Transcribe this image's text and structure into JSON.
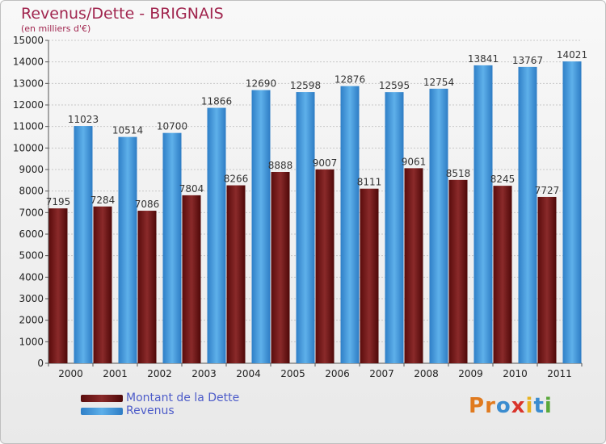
{
  "title": "Revenus/Dette - BRIGNAIS",
  "subtitle": "(en milliers d'€)",
  "logo": {
    "letters": [
      "P",
      "r",
      "o",
      "x",
      "i",
      "t",
      "i"
    ]
  },
  "colors": {
    "debt": "#6b1010",
    "revenue": "#3d93d6",
    "title": "#a1264f",
    "legend_text": "#4d5cc9"
  },
  "legend": {
    "debt_label": "Montant de la Dette",
    "revenue_label": "Revenus"
  },
  "chart_data": {
    "type": "bar",
    "categories": [
      "2000",
      "2001",
      "2002",
      "2003",
      "2004",
      "2005",
      "2006",
      "2007",
      "2008",
      "2009",
      "2010",
      "2011"
    ],
    "series": [
      {
        "name": "Montant de la Dette",
        "values": [
          7195,
          7284,
          7086,
          7804,
          8266,
          8888,
          9007,
          8111,
          9061,
          8518,
          8245,
          7727
        ],
        "labels": [
          "7195",
          "7284",
          "7086",
          "7804",
          "8266",
          "8888",
          "9007",
          "8111",
          "9061",
          "8518",
          "8245",
          "7727"
        ]
      },
      {
        "name": "Revenus",
        "values": [
          11023,
          10514,
          10700,
          11866,
          12690,
          12598,
          12876,
          12595,
          12754,
          13841,
          13767,
          14021
        ],
        "labels": [
          "11023",
          "10514",
          "10700",
          "11866",
          "12690",
          "12598",
          "12876",
          "12595",
          "12754",
          "13841",
          "13767",
          "14021"
        ]
      }
    ],
    "ylim": [
      0,
      15000
    ],
    "yticks": [
      "0",
      "1000",
      "2000",
      "3000",
      "4000",
      "5000",
      "6000",
      "7000",
      "8000",
      "9000",
      "10000",
      "11000",
      "12000",
      "13000",
      "14000",
      "15000"
    ],
    "grid": true,
    "legend_position": "bottom-left"
  }
}
